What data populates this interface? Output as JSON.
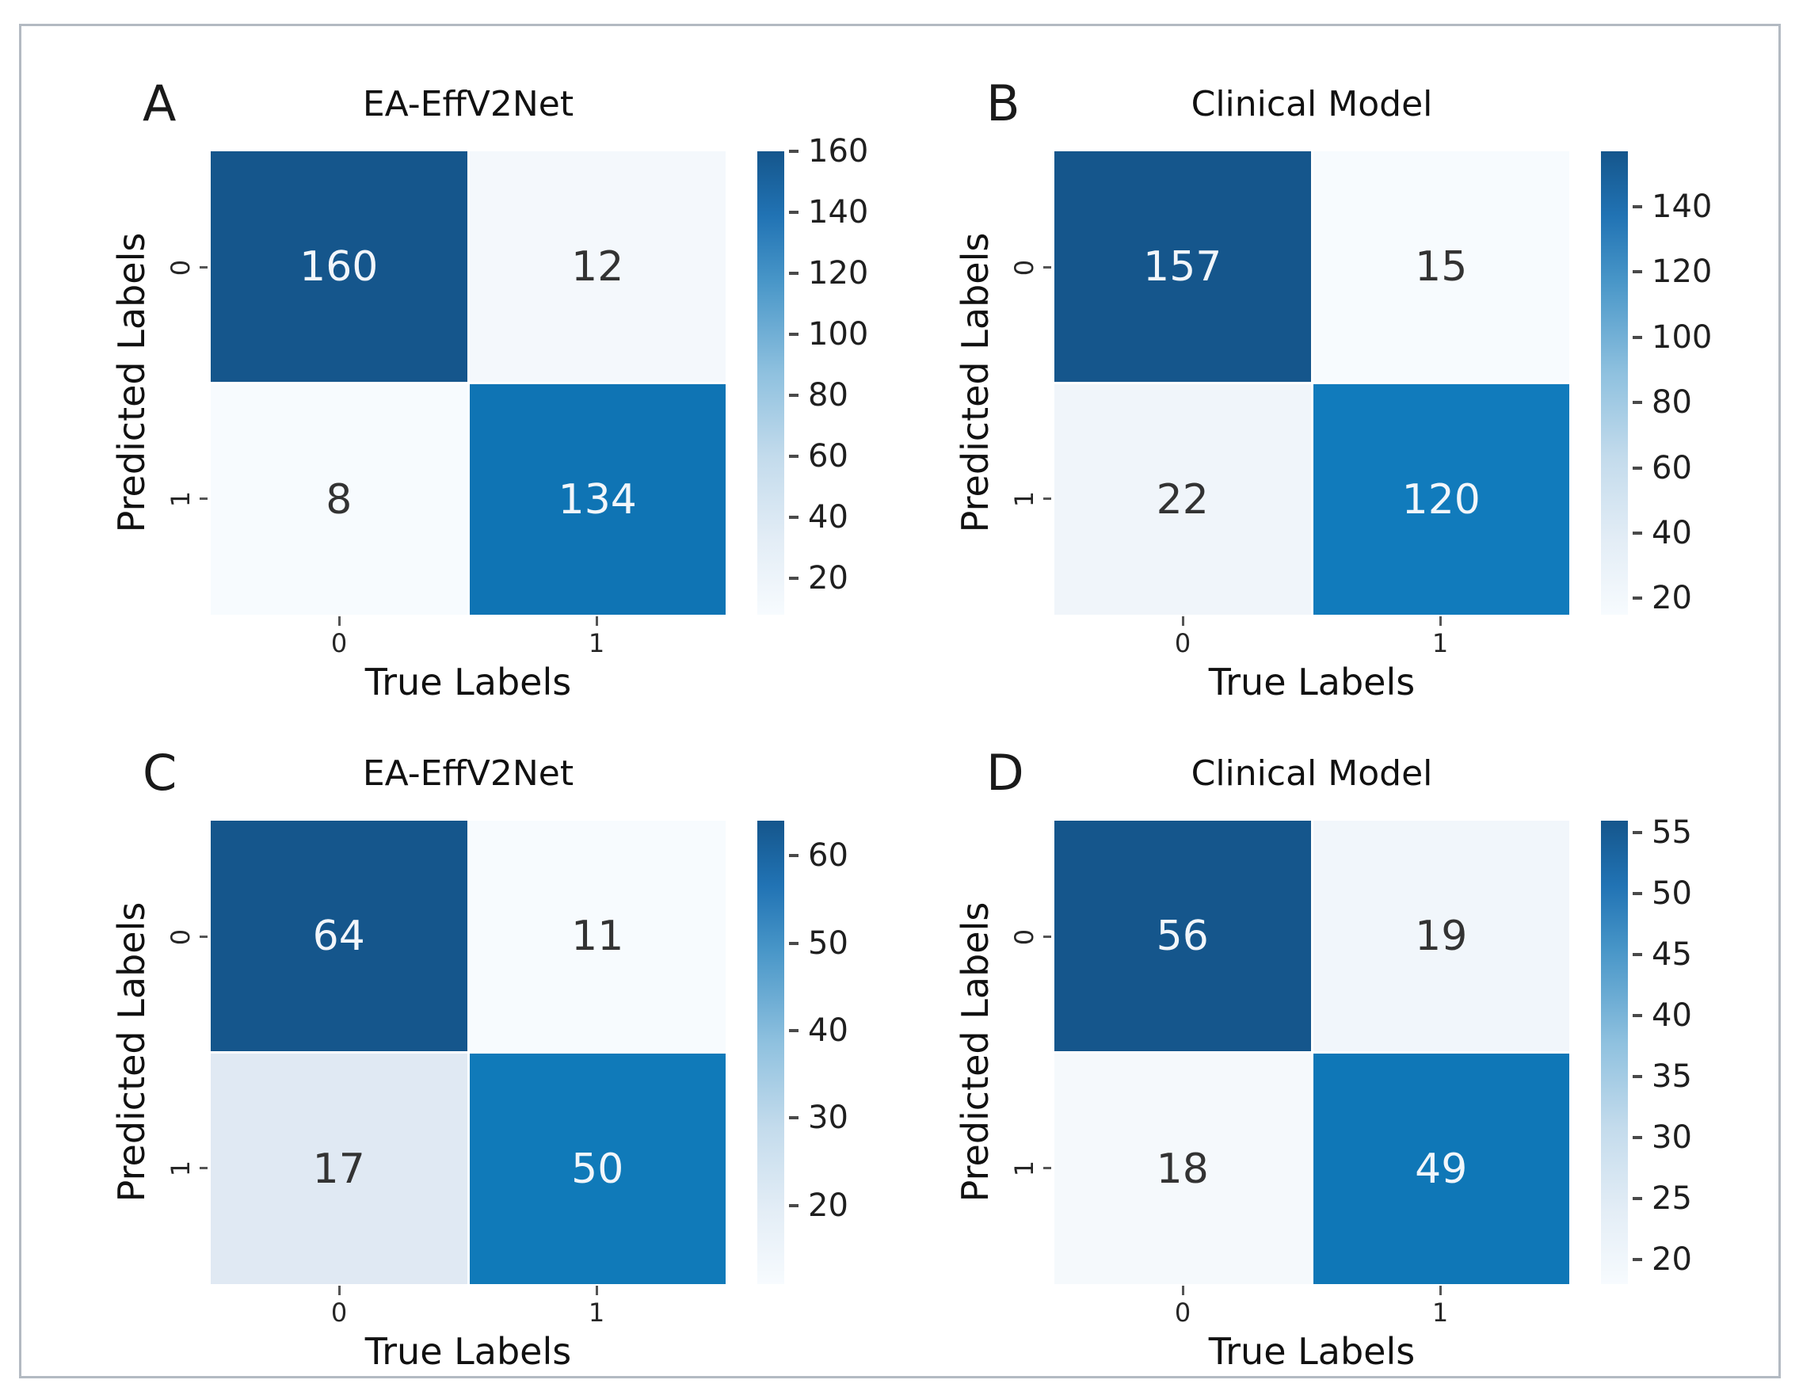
{
  "figure": {
    "background": "#ffffff",
    "border_color": "#b3bac2",
    "dark_cell_color": "#15568c",
    "mid_cell_color": "#0f74b4",
    "light_cell_color": "#f7fbfe"
  },
  "chart_data": [
    {
      "type": "heatmap",
      "panel": "A",
      "title": "EA-EffV2Net",
      "xlabel": "True Labels",
      "ylabel": "Predicted Labels",
      "x_categories": [
        "0",
        "1"
      ],
      "y_categories": [
        "0",
        "1"
      ],
      "values": [
        [
          160,
          12
        ],
        [
          8,
          134
        ]
      ],
      "vmin": 8,
      "vmax": 160,
      "colorbar_ticks": [
        20,
        40,
        60,
        80,
        100,
        120,
        140,
        160
      ],
      "cell_colors": [
        [
          "#15568c",
          "#f4f8fc"
        ],
        [
          "#f7fbfe",
          "#0f74b4"
        ]
      ],
      "legend_position": "right",
      "grid": false
    },
    {
      "type": "heatmap",
      "panel": "B",
      "title": "Clinical Model",
      "xlabel": "True Labels",
      "ylabel": "Predicted Labels",
      "x_categories": [
        "0",
        "1"
      ],
      "y_categories": [
        "0",
        "1"
      ],
      "values": [
        [
          157,
          15
        ],
        [
          22,
          120
        ]
      ],
      "vmin": 15,
      "vmax": 157,
      "colorbar_ticks": [
        20,
        40,
        60,
        80,
        100,
        120,
        140
      ],
      "cell_colors": [
        [
          "#15568c",
          "#f7fbfe"
        ],
        [
          "#f0f5fa",
          "#117bbc"
        ]
      ],
      "legend_position": "right",
      "grid": false
    },
    {
      "type": "heatmap",
      "panel": "C",
      "title": "EA-EffV2Net",
      "xlabel": "True Labels",
      "ylabel": "Predicted Labels",
      "x_categories": [
        "0",
        "1"
      ],
      "y_categories": [
        "0",
        "1"
      ],
      "values": [
        [
          64,
          11
        ],
        [
          17,
          50
        ]
      ],
      "vmin": 11,
      "vmax": 64,
      "colorbar_ticks": [
        20,
        30,
        40,
        50,
        60
      ],
      "cell_colors": [
        [
          "#15568c",
          "#f7fbfe"
        ],
        [
          "#e0e9f3",
          "#107ab9"
        ]
      ],
      "legend_position": "right",
      "grid": false
    },
    {
      "type": "heatmap",
      "panel": "D",
      "title": "Clinical Model",
      "xlabel": "True Labels",
      "ylabel": "Predicted Labels",
      "x_categories": [
        "0",
        "1"
      ],
      "y_categories": [
        "0",
        "1"
      ],
      "values": [
        [
          56,
          19
        ],
        [
          18,
          49
        ]
      ],
      "vmin": 18,
      "vmax": 56,
      "colorbar_ticks": [
        20,
        25,
        30,
        35,
        40,
        45,
        50,
        55
      ],
      "cell_colors": [
        [
          "#15568c",
          "#f1f6fb"
        ],
        [
          "#f5f9fc",
          "#0f77b7"
        ]
      ],
      "legend_position": "right",
      "grid": false
    }
  ]
}
